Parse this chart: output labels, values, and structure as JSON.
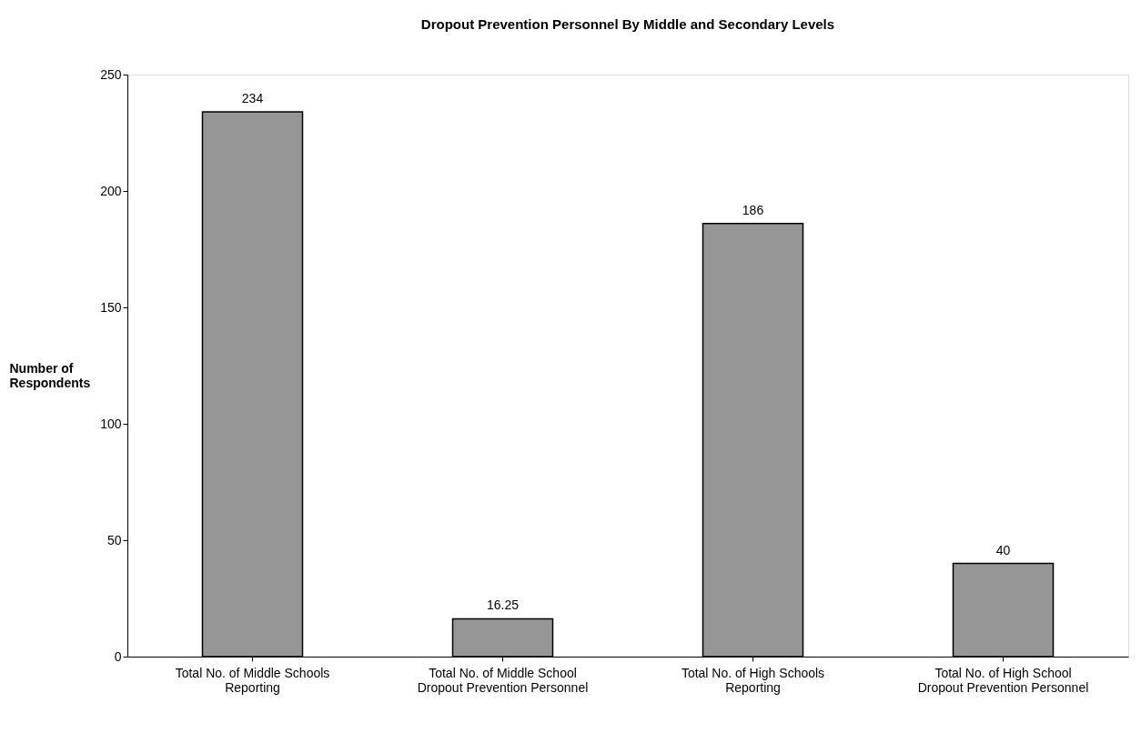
{
  "chart_data": {
    "type": "bar",
    "title": "Dropout Prevention Personnel By Middle and Secondary Levels",
    "ylabel": "Number of Respondents",
    "categories": [
      "Total No. of Middle Schools Reporting",
      "Total No. of Middle School Dropout Prevention Personnel",
      "Total No. of High Schools Reporting",
      "Total No. of High School Dropout Prevention Personnel"
    ],
    "values": [
      234,
      16.25,
      186,
      40
    ],
    "color": "#969696",
    "ylim": [
      0,
      250
    ],
    "yticks": [
      0,
      50,
      100,
      150,
      200,
      250
    ],
    "grid": false,
    "data_labels": true
  }
}
